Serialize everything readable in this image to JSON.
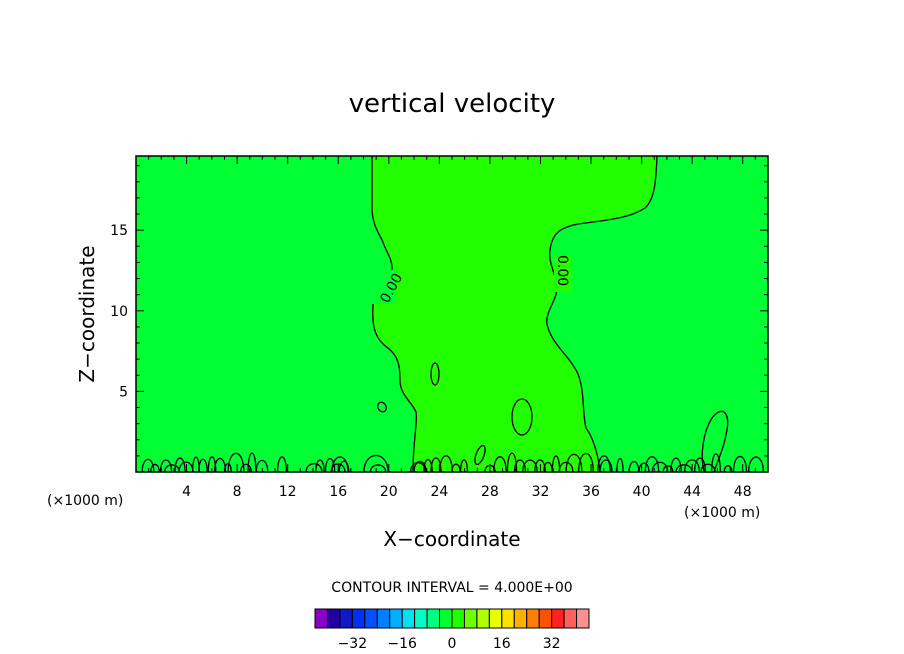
{
  "chart_data": {
    "type": "contour",
    "title": "vertical velocity",
    "xlabel": "X−coordinate",
    "ylabel": "Z−coordinate",
    "x_unit": "(×1000 m)",
    "xlim": [
      0,
      50
    ],
    "ylim": [
      0,
      19.6
    ],
    "x_ticks": [
      4,
      8,
      12,
      16,
      20,
      24,
      28,
      32,
      36,
      40,
      44,
      48
    ],
    "y_ticks": [
      5,
      10,
      15
    ],
    "contour_label": "0.00",
    "contour_interval_text": "CONTOUR INTERVAL = 4.000E+00",
    "field_description_colors": {
      "background_level": "#00ff33",
      "positive_region": "#22ff00"
    },
    "colorbar": {
      "min": -36,
      "max": 36,
      "step": 4,
      "tick_labels": [
        "−32",
        "−16",
        "0",
        "16",
        "32"
      ],
      "tick_values": [
        -32,
        -16,
        0,
        16,
        32
      ],
      "colors": [
        "#8a00c8",
        "#2000a0",
        "#1018c8",
        "#0030f0",
        "#0050ff",
        "#0080ff",
        "#00b0ff",
        "#00e0f0",
        "#00ffc0",
        "#00ff80",
        "#00ff33",
        "#22ff00",
        "#70ff00",
        "#b0ff00",
        "#e8ff00",
        "#ffe000",
        "#ffb000",
        "#ff8000",
        "#ff5000",
        "#ff2020",
        "#ff6060",
        "#ff9090"
      ]
    }
  }
}
